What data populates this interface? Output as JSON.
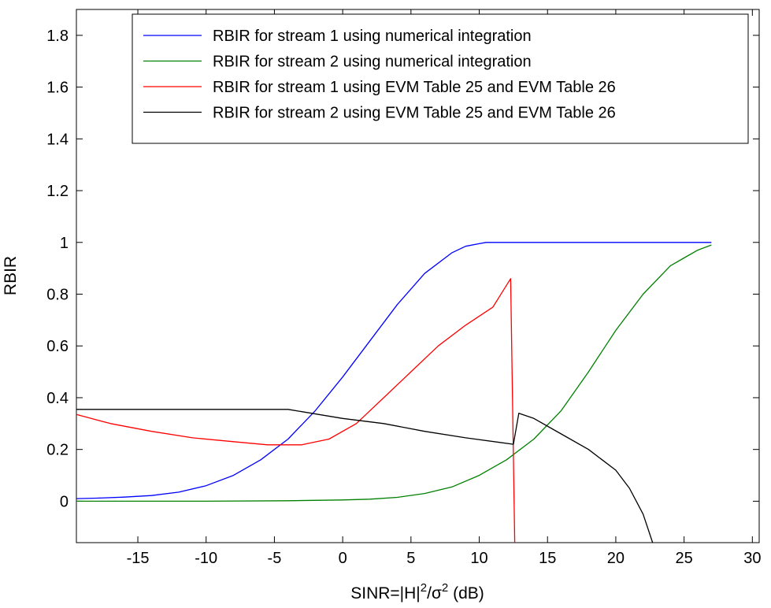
{
  "chart_data": {
    "type": "line",
    "xlabel_parts": [
      "SINR=|H|",
      "2",
      "/",
      "σ",
      "2",
      " (dB)"
    ],
    "ylabel": "RBIR",
    "xlim": [
      -19.5,
      30.5
    ],
    "ylim": [
      -0.16,
      1.9
    ],
    "xticks": [
      -15,
      -10,
      -5,
      0,
      5,
      10,
      15,
      20,
      25,
      30
    ],
    "xtick_labels": [
      "-15",
      "-10",
      "-5",
      "0",
      "5",
      "10",
      "15",
      "20",
      "25",
      "30"
    ],
    "yticks": [
      0,
      0.2,
      0.4,
      0.6,
      0.8,
      1,
      1.2,
      1.4,
      1.6,
      1.8
    ],
    "ytick_labels": [
      "0",
      "0.2",
      "0.4",
      "0.6",
      "0.8",
      "1",
      "1.2",
      "1.4",
      "1.6",
      "1.8"
    ],
    "grid": false,
    "legend_position": "top-right",
    "series": [
      {
        "name": "RBIR for stream 1 using numerical integration",
        "color": "#0000ff",
        "points": [
          [
            -19.5,
            0.01
          ],
          [
            -18,
            0.012
          ],
          [
            -16,
            0.016
          ],
          [
            -14,
            0.022
          ],
          [
            -12,
            0.035
          ],
          [
            -10,
            0.06
          ],
          [
            -8,
            0.1
          ],
          [
            -6,
            0.16
          ],
          [
            -4,
            0.24
          ],
          [
            -2,
            0.35
          ],
          [
            0,
            0.48
          ],
          [
            2,
            0.62
          ],
          [
            4,
            0.76
          ],
          [
            6,
            0.88
          ],
          [
            8,
            0.96
          ],
          [
            9,
            0.985
          ],
          [
            10,
            0.995
          ],
          [
            10.5,
            1.0
          ],
          [
            15,
            1.0
          ],
          [
            20,
            1.0
          ],
          [
            25,
            1.0
          ],
          [
            27,
            1.0
          ]
        ]
      },
      {
        "name": "RBIR for stream 2 using numerical integration",
        "color": "#008000",
        "points": [
          [
            -19.5,
            0.0
          ],
          [
            -10,
            0.0
          ],
          [
            -4,
            0.002
          ],
          [
            0,
            0.005
          ],
          [
            2,
            0.008
          ],
          [
            4,
            0.015
          ],
          [
            6,
            0.03
          ],
          [
            8,
            0.055
          ],
          [
            10,
            0.1
          ],
          [
            12,
            0.16
          ],
          [
            14,
            0.24
          ],
          [
            16,
            0.35
          ],
          [
            18,
            0.5
          ],
          [
            20,
            0.66
          ],
          [
            22,
            0.8
          ],
          [
            24,
            0.91
          ],
          [
            25,
            0.94
          ],
          [
            26,
            0.97
          ],
          [
            27,
            0.99
          ]
        ]
      },
      {
        "name": "RBIR for stream 1 using EVM Table 25 and EVM Table 26",
        "color": "#ff0000",
        "points": [
          [
            -19.5,
            0.335
          ],
          [
            -17,
            0.3
          ],
          [
            -14,
            0.27
          ],
          [
            -11,
            0.245
          ],
          [
            -8,
            0.23
          ],
          [
            -5.5,
            0.218
          ],
          [
            -3,
            0.218
          ],
          [
            -1,
            0.24
          ],
          [
            1,
            0.3
          ],
          [
            3,
            0.4
          ],
          [
            5,
            0.5
          ],
          [
            7,
            0.6
          ],
          [
            9,
            0.68
          ],
          [
            11,
            0.75
          ],
          [
            12.3,
            0.86
          ],
          [
            12.6,
            -0.16
          ]
        ]
      },
      {
        "name": "RBIR for stream 2 using EVM Table 25 and EVM Table 26",
        "color": "#000000",
        "points": [
          [
            -19.5,
            0.355
          ],
          [
            -4,
            0.355
          ],
          [
            0,
            0.32
          ],
          [
            3,
            0.3
          ],
          [
            6,
            0.27
          ],
          [
            9,
            0.245
          ],
          [
            12.5,
            0.22
          ],
          [
            12.9,
            0.34
          ],
          [
            14,
            0.32
          ],
          [
            16,
            0.26
          ],
          [
            18,
            0.2
          ],
          [
            20,
            0.12
          ],
          [
            21,
            0.05
          ],
          [
            22,
            -0.05
          ],
          [
            22.7,
            -0.16
          ]
        ]
      }
    ]
  }
}
